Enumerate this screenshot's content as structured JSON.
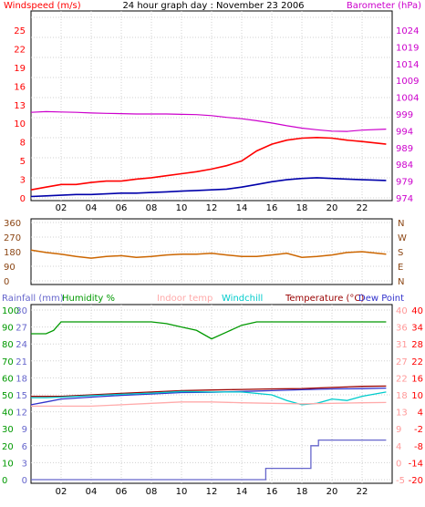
{
  "colors": {
    "wind": "#ff0000",
    "wind_avg": "#0000aa",
    "barometer": "#cc00cc",
    "direction": "#cc6600",
    "direction_axis": "#8b4513",
    "rainfall": "#6666cc",
    "humidity": "#009900",
    "indoor_temp": "#ffaaaa",
    "windchill": "#00cccc",
    "temperature": "#990000",
    "dew_point": "#3333cc",
    "temp_axis": "#ff0000",
    "temp_axis_inner": "#ff9999"
  },
  "chart_data": [
    {
      "name": "wind-barometer",
      "type": "line",
      "title": "24 hour graph day : November 23 2006",
      "left_axis_label": "Windspeed (m/s)",
      "right_axis_label": "Barometer (hPa)",
      "x_ticks": [
        "02",
        "04",
        "06",
        "08",
        "10",
        "12",
        "14",
        "16",
        "18",
        "20",
        "22"
      ],
      "left_ticks": [
        "25",
        "22",
        "19",
        "16",
        "13",
        "10",
        "8",
        "5",
        "3",
        "0"
      ],
      "right_ticks": [
        "1024",
        "1019",
        "1014",
        "1009",
        "1004",
        "999",
        "994",
        "989",
        "984",
        "979",
        "974"
      ],
      "x_range": [
        0,
        24
      ],
      "left_range": [
        0,
        25
      ],
      "right_range": [
        974,
        1024
      ],
      "series": [
        {
          "name": "Barometer",
          "axis": "right",
          "x": [
            0,
            1,
            2,
            3,
            4,
            5,
            6,
            7,
            8,
            9,
            10,
            11,
            12,
            13,
            14,
            15,
            16,
            17,
            18,
            19,
            20,
            21,
            22,
            23.6
          ],
          "y": [
            999.5,
            999.7,
            999.6,
            999.5,
            999.3,
            999.2,
            999.1,
            999.0,
            999.0,
            999.0,
            998.9,
            998.8,
            998.5,
            998.0,
            997.6,
            997.0,
            996.3,
            995.5,
            994.8,
            994.3,
            993.9,
            993.8,
            994.2,
            994.5
          ]
        },
        {
          "name": "Wind gust",
          "axis": "left",
          "x": [
            0,
            1,
            2,
            3,
            4,
            5,
            6,
            7,
            8,
            9,
            10,
            11,
            12,
            13,
            14,
            15,
            16,
            17,
            18,
            19,
            20,
            21,
            22,
            23.6
          ],
          "y": [
            1.2,
            1.6,
            2.0,
            2.0,
            2.3,
            2.5,
            2.5,
            2.8,
            3.0,
            3.3,
            3.6,
            3.9,
            4.3,
            4.8,
            5.5,
            7.0,
            8.0,
            8.6,
            8.9,
            9.0,
            8.9,
            8.6,
            8.4,
            8.0
          ]
        },
        {
          "name": "Wind average",
          "axis": "left",
          "x": [
            0,
            1,
            2,
            3,
            4,
            5,
            6,
            7,
            8,
            9,
            10,
            11,
            12,
            13,
            14,
            15,
            16,
            17,
            18,
            19,
            20,
            21,
            22,
            23.6
          ],
          "y": [
            0.2,
            0.3,
            0.4,
            0.5,
            0.5,
            0.6,
            0.7,
            0.7,
            0.8,
            0.9,
            1.0,
            1.1,
            1.2,
            1.3,
            1.6,
            2.0,
            2.4,
            2.7,
            2.9,
            3.0,
            2.9,
            2.8,
            2.7,
            2.6
          ]
        }
      ]
    },
    {
      "name": "wind-direction",
      "type": "line",
      "left_ticks": [
        "360",
        "270",
        "180",
        "90",
        "0"
      ],
      "right_ticks": [
        "N",
        "W",
        "S",
        "E",
        "N"
      ],
      "x_range": [
        0,
        24
      ],
      "y_range": [
        0,
        360
      ],
      "series": [
        {
          "name": "Wind direction",
          "x": [
            0,
            1,
            2,
            3,
            4,
            5,
            6,
            7,
            8,
            9,
            10,
            11,
            12,
            13,
            14,
            15,
            16,
            17,
            18,
            19,
            20,
            21,
            22,
            23.6
          ],
          "y": [
            190,
            175,
            165,
            150,
            140,
            150,
            155,
            145,
            150,
            160,
            165,
            165,
            170,
            160,
            150,
            150,
            160,
            170,
            145,
            150,
            160,
            175,
            180,
            165
          ]
        }
      ]
    },
    {
      "name": "temperature-humidity",
      "type": "line",
      "header_labels": [
        {
          "text": "Rainfall (mm)",
          "color_key": "rainfall"
        },
        {
          "text": "Humidity %",
          "color_key": "humidity"
        },
        {
          "text": "Indoor temp",
          "color_key": "indoor_temp"
        },
        {
          "text": "Windchill",
          "color_key": "windchill"
        },
        {
          "text": "Temperature (°C)",
          "color_key": "temperature"
        },
        {
          "text": "Dew Point",
          "color_key": "dew_point"
        }
      ],
      "x_ticks": [
        "02",
        "04",
        "06",
        "08",
        "10",
        "12",
        "14",
        "16",
        "18",
        "20",
        "22"
      ],
      "x_range": [
        0,
        24
      ],
      "humidity_ticks": [
        "100",
        "90",
        "80",
        "70",
        "60",
        "50",
        "40",
        "30",
        "20",
        "10",
        "0"
      ],
      "rain_ticks": [
        "30",
        "27",
        "24",
        "21",
        "18",
        "15",
        "12",
        "9",
        "6",
        "3",
        "0"
      ],
      "temp_inner_ticks": [
        "40",
        "36",
        "31",
        "27",
        "22",
        "18",
        "13",
        "9",
        "4",
        "0",
        "-5"
      ],
      "temp_outer_ticks": [
        "40",
        "34",
        "28",
        "22",
        "16",
        "10",
        "4",
        "-2",
        "-8",
        "-14",
        "-20"
      ],
      "series": [
        {
          "name": "Humidity",
          "axis": "humidity",
          "x": [
            0,
            1,
            1.5,
            2,
            4,
            6,
            8,
            9,
            10,
            11,
            12,
            13,
            14,
            15,
            16,
            17,
            18,
            19,
            20,
            21,
            22,
            23.6
          ],
          "y": [
            86,
            86,
            88,
            93,
            93,
            93,
            93,
            92,
            90,
            88,
            83,
            87,
            91,
            93,
            93,
            93,
            93,
            93,
            93,
            93,
            93,
            93
          ]
        },
        {
          "name": "Rainfall",
          "axis": "rain",
          "x": [
            0,
            15.6,
            15.6,
            18.6,
            18.6,
            19.1,
            19.1,
            23.6
          ],
          "y": [
            0,
            0,
            2,
            2,
            6,
            6,
            7,
            7
          ]
        },
        {
          "name": "Temperature",
          "axis": "temp",
          "x": [
            0,
            1,
            2,
            4,
            6,
            8,
            10,
            12,
            14,
            16,
            18,
            20,
            22,
            23.6
          ],
          "y": [
            9.5,
            9.5,
            9.5,
            10,
            10.5,
            11,
            11.5,
            11.7,
            11.9,
            12.1,
            12.2,
            12.6,
            13.0,
            13.1
          ]
        },
        {
          "name": "Dew Point",
          "axis": "temp",
          "x": [
            0,
            1,
            2,
            4,
            6,
            8,
            10,
            12,
            14,
            16,
            18,
            20,
            22,
            23.6
          ],
          "y": [
            6.5,
            7.5,
            8.5,
            9.2,
            9.8,
            10.3,
            10.8,
            10.9,
            11.2,
            11.5,
            11.8,
            12.1,
            12.2,
            12.4
          ]
        },
        {
          "name": "Windchill",
          "axis": "temp",
          "x": [
            0,
            1,
            2,
            4,
            6,
            8,
            10,
            12,
            14,
            16,
            17,
            18,
            19,
            20,
            21,
            22,
            23.6
          ],
          "y": [
            9.0,
            9.0,
            9.2,
            9.7,
            10.2,
            10.6,
            11.2,
            11.0,
            11.0,
            10.0,
            8.0,
            6.5,
            7.0,
            8.5,
            8.0,
            9.5,
            11.0
          ]
        },
        {
          "name": "Indoor temp",
          "axis": "temp",
          "x": [
            0,
            2,
            4,
            6,
            8,
            10,
            12,
            14,
            16,
            18,
            20,
            22,
            23.6
          ],
          "y": [
            6.0,
            6.0,
            6.0,
            6.5,
            7.0,
            7.5,
            7.5,
            7.2,
            7.0,
            6.8,
            7.0,
            7.2,
            7.3
          ]
        }
      ]
    }
  ]
}
